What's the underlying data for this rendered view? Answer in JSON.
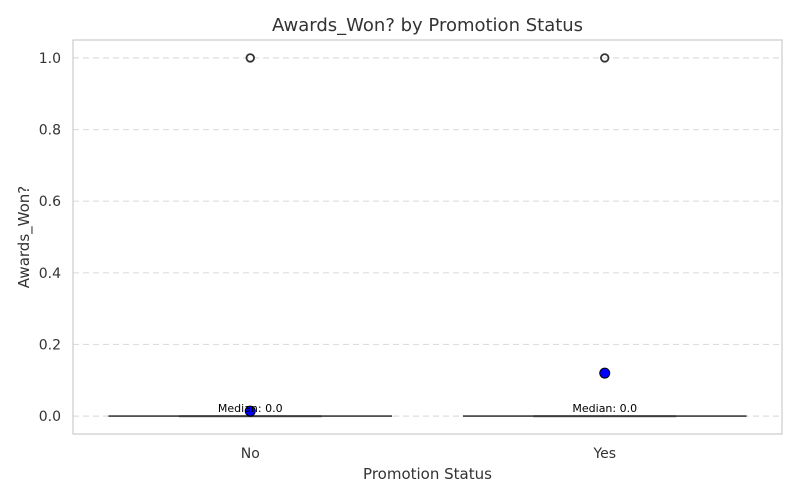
{
  "chart_data": {
    "type": "box",
    "title": "Awards_Won? by Promotion Status",
    "xlabel": "Promotion Status",
    "ylabel": "Awards_Won?",
    "ylim": [
      -0.05,
      1.05
    ],
    "yticks": [
      0.0,
      0.2,
      0.4,
      0.6,
      0.8,
      1.0
    ],
    "ytick_labels": [
      "0.0",
      "0.2",
      "0.4",
      "0.6",
      "0.8",
      "1.0"
    ],
    "grid": true,
    "categories": [
      "No",
      "Yes"
    ],
    "groups": [
      {
        "category": "No",
        "median": 0.0,
        "q1": 0.0,
        "q3": 0.0,
        "whisker_low": 0.0,
        "whisker_high": 0.0,
        "outliers": [
          1.0
        ],
        "mean": 0.014,
        "median_label": "Median: 0.0"
      },
      {
        "category": "Yes",
        "median": 0.0,
        "q1": 0.0,
        "q3": 0.0,
        "whisker_low": 0.0,
        "whisker_high": 0.0,
        "outliers": [
          1.0
        ],
        "mean": 0.12,
        "median_label": "Median: 0.0"
      }
    ],
    "colors": {
      "box_line": "#3a3a3a",
      "mean_fill": "#0000ff",
      "mean_stroke": "#000000",
      "outlier_stroke": "#333333",
      "grid": "#dddddd",
      "frame": "#cccccc",
      "text": "#333333",
      "annotation": "#000000"
    }
  }
}
